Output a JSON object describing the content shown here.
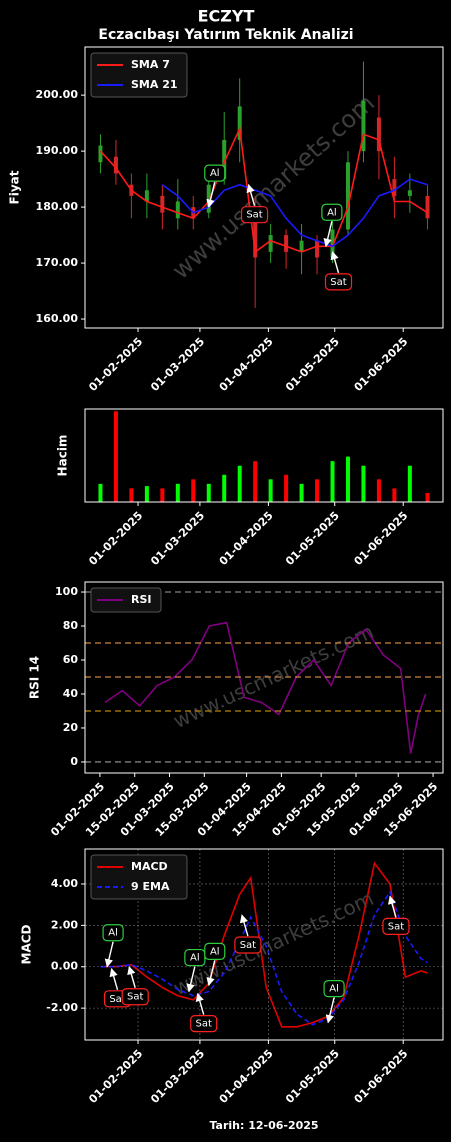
{
  "chart_data": [
    {
      "type": "line",
      "title": "ECZYT",
      "subtitle": "Eczacıbaşı Yatırım Teknik Analizi",
      "ylabel": "Fiyat",
      "watermark": "www.uscmarkets.com",
      "legend": "upper left",
      "grid": false,
      "xlim": [
        "2025-01-08",
        "2025-06-19"
      ],
      "ylim": [
        158.4,
        208.6
      ],
      "xticks": [
        {
          "value": "2025-02-01",
          "label": "01-02-2025"
        },
        {
          "value": "2025-03-01",
          "label": "01-03-2025"
        },
        {
          "value": "2025-04-01",
          "label": "01-04-2025"
        },
        {
          "value": "2025-05-01",
          "label": "01-05-2025"
        },
        {
          "value": "2025-06-01",
          "label": "01-06-2025"
        }
      ],
      "yticks": [
        {
          "value": 160,
          "label": "160.00"
        },
        {
          "value": 170,
          "label": "170.00"
        },
        {
          "value": 180,
          "label": "180.00"
        },
        {
          "value": 190,
          "label": "190.00"
        },
        {
          "value": 200,
          "label": "200.00"
        }
      ],
      "x": [
        "2025-01-15",
        "2025-01-22",
        "2025-01-29",
        "2025-02-05",
        "2025-02-12",
        "2025-02-19",
        "2025-02-26",
        "2025-03-05",
        "2025-03-12",
        "2025-03-19",
        "2025-03-26",
        "2025-04-02",
        "2025-04-09",
        "2025-04-16",
        "2025-04-23",
        "2025-04-30",
        "2025-05-07",
        "2025-05-14",
        "2025-05-21",
        "2025-05-28",
        "2025-06-04",
        "2025-06-12"
      ],
      "candles": {
        "up_color": "#2ca02c",
        "down_color": "#d62728",
        "open": [
          188,
          189,
          184,
          181,
          182,
          178,
          180,
          179,
          185,
          192,
          180,
          172,
          175,
          172,
          174,
          171,
          176,
          190,
          196,
          185,
          182,
          182
        ],
        "close": [
          191,
          186,
          182,
          183,
          179,
          181,
          178,
          184,
          192,
          198,
          171,
          175,
          172,
          174,
          171,
          176,
          188,
          199,
          190,
          182,
          183,
          178
        ],
        "high": [
          193,
          192,
          186,
          186,
          184,
          185,
          182,
          186,
          197,
          203,
          182,
          177,
          176,
          177,
          175,
          178,
          190,
          206,
          200,
          189,
          186,
          184
        ],
        "low": [
          186,
          184,
          178,
          178,
          176,
          176,
          176,
          178,
          184,
          188,
          162,
          170,
          169,
          168,
          168,
          170,
          175,
          188,
          185,
          178,
          179,
          176
        ]
      },
      "series": [
        {
          "name": "SMA 7",
          "color": "#ff1a1a",
          "values": [
            190,
            187,
            183,
            181,
            180,
            179,
            178,
            181,
            188,
            194,
            172,
            174,
            173,
            172,
            173,
            173,
            180,
            193,
            192,
            181,
            181,
            179
          ]
        },
        {
          "name": "SMA 21",
          "color": "#1a1aff",
          "values": [
            null,
            null,
            null,
            null,
            184,
            182,
            179,
            180,
            183,
            184,
            183,
            182,
            178,
            175,
            174,
            173,
            175,
            178,
            182,
            183,
            185,
            184
          ]
        }
      ],
      "annotations": [
        {
          "text": "Al",
          "x": "2025-03-05",
          "y": 180
        },
        {
          "text": "Sat",
          "x": "2025-03-23",
          "y": 184
        },
        {
          "text": "Al",
          "x": "2025-04-27",
          "y": 173
        },
        {
          "text": "Sat",
          "x": "2025-04-30",
          "y": 172
        }
      ]
    },
    {
      "type": "bar",
      "ylabel": "Hacim",
      "xlim": [
        "2025-01-08",
        "2025-06-19"
      ],
      "ylim": [
        0,
        2.05
      ],
      "xticks": [
        {
          "value": "2025-02-01",
          "label": "01-02-2025"
        },
        {
          "value": "2025-03-01",
          "label": "01-03-2025"
        },
        {
          "value": "2025-04-01",
          "label": "01-04-2025"
        },
        {
          "value": "2025-05-01",
          "label": "01-05-2025"
        },
        {
          "value": "2025-06-01",
          "label": "01-06-2025"
        }
      ],
      "x": [
        "2025-01-15",
        "2025-01-22",
        "2025-01-29",
        "2025-02-05",
        "2025-02-12",
        "2025-02-19",
        "2025-02-26",
        "2025-03-05",
        "2025-03-12",
        "2025-03-19",
        "2025-03-26",
        "2025-04-02",
        "2025-04-09",
        "2025-04-16",
        "2025-04-23",
        "2025-04-30",
        "2025-05-07",
        "2025-05-14",
        "2025-05-21",
        "2025-05-28",
        "2025-06-04",
        "2025-06-12"
      ],
      "values": [
        0.4,
        2.0,
        0.3,
        0.35,
        0.3,
        0.4,
        0.5,
        0.4,
        0.6,
        0.8,
        0.9,
        0.5,
        0.6,
        0.4,
        0.5,
        0.9,
        1.0,
        0.8,
        0.5,
        0.3,
        0.8,
        0.2
      ],
      "colors": [
        "#00ff00",
        "#ff0000",
        "#ff0000",
        "#00ff00",
        "#ff0000",
        "#00ff00",
        "#ff0000",
        "#00ff00",
        "#00ff00",
        "#00ff00",
        "#ff0000",
        "#00ff00",
        "#ff0000",
        "#00ff00",
        "#ff0000",
        "#00ff00",
        "#00ff00",
        "#00ff00",
        "#ff0000",
        "#ff0000",
        "#00ff00",
        "#ff0000"
      ]
    },
    {
      "type": "line",
      "ylabel": "RSI 14",
      "watermark": "www.uscmarkets.com",
      "legend": "upper left",
      "grid": false,
      "xlim": [
        "2025-01-26",
        "2025-06-19"
      ],
      "ylim": [
        -6.5,
        105.9
      ],
      "xticks": [
        {
          "value": "2025-02-01",
          "label": "01-02-2025"
        },
        {
          "value": "2025-02-15",
          "label": "15-02-2025"
        },
        {
          "value": "2025-03-01",
          "label": "01-03-2025"
        },
        {
          "value": "2025-03-15",
          "label": "15-03-2025"
        },
        {
          "value": "2025-04-01",
          "label": "01-04-2025"
        },
        {
          "value": "2025-04-15",
          "label": "15-04-2025"
        },
        {
          "value": "2025-05-01",
          "label": "01-05-2025"
        },
        {
          "value": "2025-05-15",
          "label": "15-05-2025"
        },
        {
          "value": "2025-06-01",
          "label": "01-06-2025"
        },
        {
          "value": "2025-06-15",
          "label": "15-06-2025"
        }
      ],
      "yticks": [
        0,
        20,
        40,
        60,
        80,
        100
      ],
      "hlines": [
        {
          "value": 0,
          "color": "#808080"
        },
        {
          "value": 30,
          "color": "#b8860b"
        },
        {
          "value": 50,
          "color": "#cd853f"
        },
        {
          "value": 70,
          "color": "#cd853f"
        },
        {
          "value": 100,
          "color": "#808080"
        }
      ],
      "x": [
        "2025-02-03",
        "2025-02-10",
        "2025-02-17",
        "2025-02-24",
        "2025-03-03",
        "2025-03-10",
        "2025-03-17",
        "2025-03-24",
        "2025-03-31",
        "2025-04-07",
        "2025-04-14",
        "2025-04-21",
        "2025-04-28",
        "2025-05-05",
        "2025-05-12",
        "2025-05-19",
        "2025-05-26",
        "2025-06-02",
        "2025-06-06",
        "2025-06-09",
        "2025-06-12"
      ],
      "series": [
        {
          "name": "RSI",
          "color": "#800080",
          "values": [
            35,
            42,
            33,
            45,
            50,
            60,
            80,
            82,
            38,
            35,
            28,
            50,
            60,
            45,
            70,
            78,
            63,
            55,
            5,
            27,
            40
          ]
        }
      ]
    },
    {
      "type": "line",
      "ylabel": "MACD",
      "xlabel": "Tarih: 12-06-2025",
      "watermark": "www.uscmarkets.com",
      "legend": "upper left",
      "grid": true,
      "xlim": [
        "2025-01-08",
        "2025-06-19"
      ],
      "ylim": [
        -3.54,
        5.69
      ],
      "xticks": [
        {
          "value": "2025-02-01",
          "label": "01-02-2025"
        },
        {
          "value": "2025-03-01",
          "label": "01-03-2025"
        },
        {
          "value": "2025-04-01",
          "label": "01-04-2025"
        },
        {
          "value": "2025-05-01",
          "label": "01-05-2025"
        },
        {
          "value": "2025-06-01",
          "label": "01-06-2025"
        }
      ],
      "yticks": [
        {
          "value": -2,
          "label": "-2.00"
        },
        {
          "value": 0,
          "label": "0.00"
        },
        {
          "value": 2,
          "label": "2.00"
        },
        {
          "value": 4,
          "label": "4.00"
        }
      ],
      "x": [
        "2025-01-15",
        "2025-01-22",
        "2025-01-29",
        "2025-02-05",
        "2025-02-12",
        "2025-02-19",
        "2025-02-26",
        "2025-03-05",
        "2025-03-12",
        "2025-03-19",
        "2025-03-24",
        "2025-03-31",
        "2025-04-07",
        "2025-04-14",
        "2025-04-21",
        "2025-04-28",
        "2025-05-05",
        "2025-05-12",
        "2025-05-19",
        "2025-05-26",
        "2025-06-02",
        "2025-06-09",
        "2025-06-12"
      ],
      "series": [
        {
          "name": "MACD",
          "color": "#e00000",
          "dash": false,
          "values": [
            0,
            0,
            0.1,
            -0.5,
            -1.0,
            -1.4,
            -1.6,
            -0.8,
            1.5,
            3.5,
            4.3,
            -1.0,
            -2.9,
            -2.9,
            -2.7,
            -2.4,
            -1.5,
            1.5,
            5.0,
            4.0,
            -0.5,
            -0.2,
            -0.3
          ]
        },
        {
          "name": "9 EMA",
          "color": "#1a1aff",
          "dash": true,
          "values": [
            0,
            0,
            0.1,
            -0.2,
            -0.6,
            -1.1,
            -1.4,
            -1.2,
            -0.3,
            1.2,
            2.4,
            1.0,
            -1.2,
            -2.3,
            -2.8,
            -2.5,
            -1.6,
            0.2,
            2.5,
            3.6,
            1.5,
            0.4,
            0.2
          ]
        }
      ],
      "annotations": [
        {
          "text": "Al",
          "x": "2025-01-18",
          "y": 0.0
        },
        {
          "text": "Sat",
          "x": "2025-01-20",
          "y": -0.1
        },
        {
          "text": "Sat",
          "x": "2025-01-28",
          "y": 0.0
        },
        {
          "text": "Al",
          "x": "2025-02-24",
          "y": -1.2
        },
        {
          "text": "Sat",
          "x": "2025-02-28",
          "y": -1.3
        },
        {
          "text": "Al",
          "x": "2025-03-05",
          "y": -0.9
        },
        {
          "text": "Sat",
          "x": "2025-03-20",
          "y": 2.5
        },
        {
          "text": "Al",
          "x": "2025-04-28",
          "y": -2.7
        },
        {
          "text": "Sat",
          "x": "2025-05-26",
          "y": 3.4
        }
      ]
    }
  ]
}
